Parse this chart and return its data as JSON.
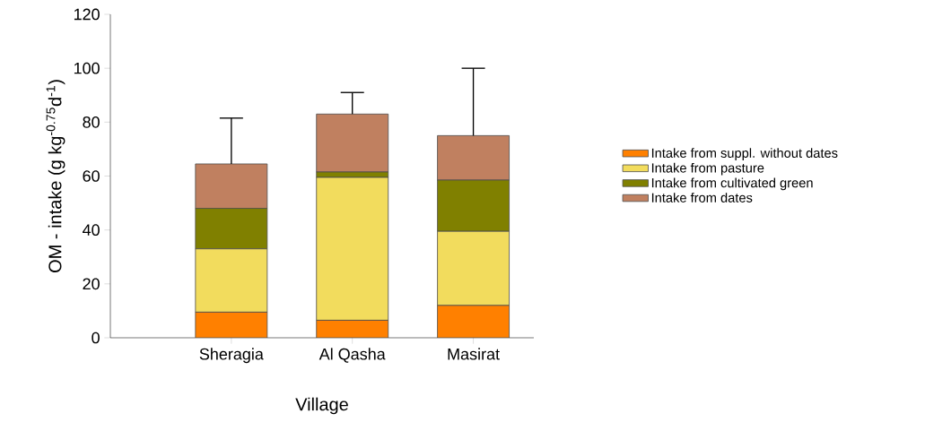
{
  "chart_data": {
    "type": "bar",
    "stacked": true,
    "xlabel": "Village",
    "ylabel": "OM - intake (g kg$^{-0.75}$d$^{-1}$)",
    "categories": [
      "Sheragia",
      "Al Qasha",
      "Masirat"
    ],
    "series": [
      {
        "name": "Intake from suppl. without dates",
        "color": "#ff8000",
        "values": [
          9.5,
          6.5,
          12
        ]
      },
      {
        "name": "Intake from pasture",
        "color": "#f2dc5d",
        "values": [
          23.5,
          53,
          27.5
        ]
      },
      {
        "name": "Intake from cultivated green",
        "color": "#808000",
        "values": [
          15,
          2,
          19
        ]
      },
      {
        "name": "Intake from dates",
        "color": "#c08060",
        "values": [
          16.5,
          21.5,
          16.5
        ],
        "errors": [
          [
            64.5,
            81.5
          ],
          [
            83,
            91
          ],
          [
            75,
            100
          ]
        ]
      }
    ],
    "ylim": [
      0,
      120
    ],
    "yticks": [
      0,
      20,
      40,
      60,
      80,
      100,
      120
    ],
    "legend": "right",
    "grid": false
  }
}
